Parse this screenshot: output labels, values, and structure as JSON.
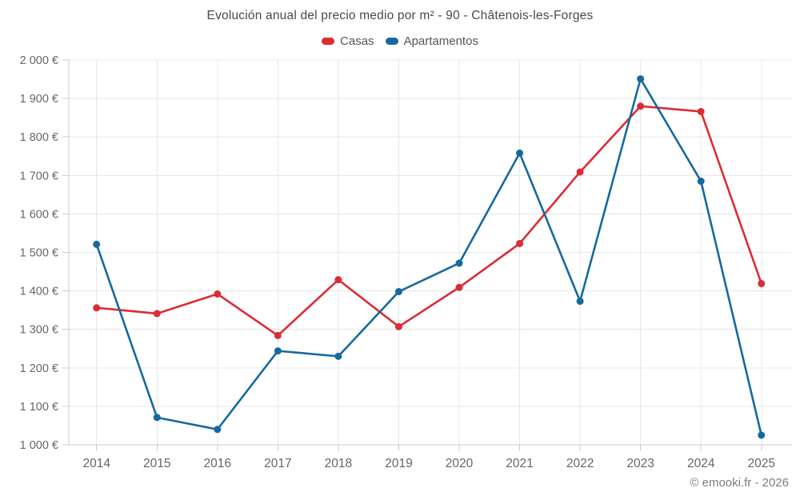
{
  "title": "Evolución anual del precio medio por m² - 90 - Châtenois-les-Forges",
  "watermark": "© emooki.fr - 2026",
  "colors": {
    "casas": "#dc2c34",
    "apartamentos": "#16699f",
    "grid": "#e7e7e7",
    "axis": "#cccccc",
    "title_text": "#4a4a4a",
    "legend_text": "#555555",
    "axis_text": "#666666",
    "watermark_text": "#7d7d7d"
  },
  "legend": {
    "items": [
      {
        "label": "Casas",
        "color_key": "casas"
      },
      {
        "label": "Apartamentos",
        "color_key": "apartamentos"
      }
    ]
  },
  "chart_data": {
    "type": "line",
    "title": "Evolución anual del precio medio por m² - 90 - Châtenois-les-Forges",
    "x": [
      2014,
      2015,
      2016,
      2017,
      2018,
      2019,
      2020,
      2021,
      2022,
      2023,
      2024,
      2025
    ],
    "series": [
      {
        "name": "Casas",
        "color": "#dc2c34",
        "values": [
          1356,
          1341,
          1392,
          1284,
          1429,
          1307,
          1409,
          1523,
          1709,
          1880,
          1866,
          1419
        ]
      },
      {
        "name": "Apartamentos",
        "color": "#16699f",
        "values": [
          1521,
          1071,
          1040,
          1244,
          1230,
          1398,
          1472,
          1758,
          1373,
          1951,
          1685,
          1025
        ]
      }
    ],
    "ylabel": "",
    "xlabel": "",
    "ylim": [
      1000,
      2000
    ],
    "yticks": [
      {
        "value": 1000,
        "label": "1 000 €"
      },
      {
        "value": 1100,
        "label": "1 100 €"
      },
      {
        "value": 1200,
        "label": "1 200 €"
      },
      {
        "value": 1300,
        "label": "1 300 €"
      },
      {
        "value": 1400,
        "label": "1 400 €"
      },
      {
        "value": 1500,
        "label": "1 500 €"
      },
      {
        "value": 1600,
        "label": "1 600 €"
      },
      {
        "value": 1700,
        "label": "1 700 €"
      },
      {
        "value": 1800,
        "label": "1 800 €"
      },
      {
        "value": 1900,
        "label": "1 900 €"
      },
      {
        "value": 2000,
        "label": "2 000 €"
      }
    ],
    "grid": true,
    "legend_position": "top",
    "marker": "circle"
  }
}
